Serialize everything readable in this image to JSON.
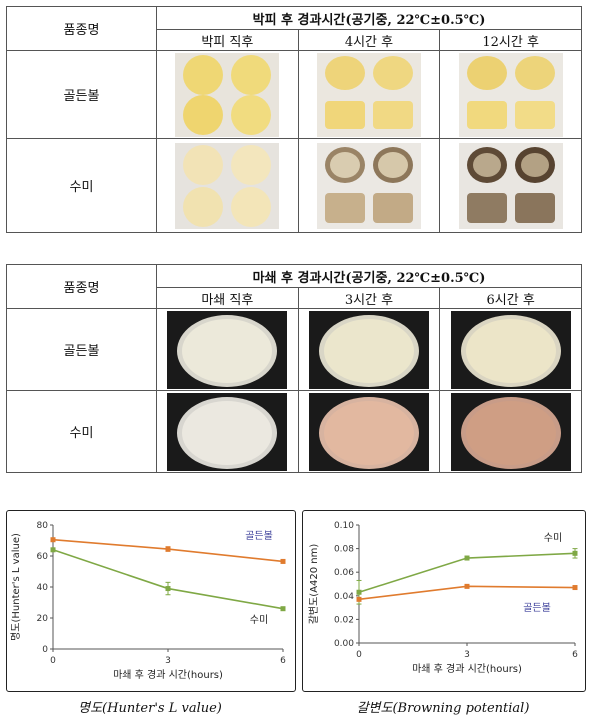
{
  "table1": {
    "variety_header": "품종명",
    "title": "박피 후 경과시간(공기중, 22℃±0.5℃)",
    "columns": [
      "박피 직후",
      "4시간 후",
      "12시간 후"
    ],
    "rows": [
      "골든볼",
      "수미"
    ]
  },
  "table2": {
    "variety_header": "품종명",
    "title": "마쇄 후 경과시간(공기중, 22℃±0.5℃)",
    "columns": [
      "마쇄 직후",
      "3시간 후",
      "6시간 후"
    ],
    "rows": [
      "골든볼",
      "수미"
    ]
  },
  "colors": {
    "golden_ball": "#e07b2e",
    "sumi": "#7fa845",
    "golden_ball_label": "#3b3f9a",
    "sumi_label": "#222222"
  },
  "chart_data": [
    {
      "type": "line",
      "title": "",
      "xlabel": "마쇄 후 경과 시간(hours)",
      "ylabel": "명도(Hunter's L value)",
      "x": [
        0,
        3,
        6
      ],
      "xticks": [
        "0",
        "3",
        "6"
      ],
      "ylim": [
        0,
        80
      ],
      "yticks": [
        "0",
        "20",
        "40",
        "60",
        "80"
      ],
      "series": [
        {
          "name": "골든볼",
          "values": [
            70.5,
            64.5,
            56.5
          ],
          "errors": [
            0.8,
            1.5,
            0.8
          ]
        },
        {
          "name": "수미",
          "values": [
            64,
            39,
            26
          ],
          "errors": [
            1.0,
            4.0,
            1.0
          ]
        }
      ],
      "grid": false,
      "caption": "명도(Hunter's L value)"
    },
    {
      "type": "line",
      "title": "",
      "xlabel": "마쇄 후 경과 시간(hours)",
      "ylabel": "갈변도(A420 nm)",
      "x": [
        0,
        3,
        6
      ],
      "xticks": [
        "0",
        "3",
        "6"
      ],
      "ylim": [
        0,
        0.1
      ],
      "yticks": [
        "0.00",
        "0.02",
        "0.04",
        "0.06",
        "0.08",
        "0.10"
      ],
      "series": [
        {
          "name": "수미",
          "values": [
            0.043,
            0.072,
            0.076
          ],
          "errors": [
            0.01,
            0.0015,
            0.004
          ]
        },
        {
          "name": "골든볼",
          "values": [
            0.037,
            0.048,
            0.047
          ],
          "errors": [
            0.001,
            0.001,
            0.001
          ]
        }
      ],
      "grid": false,
      "caption": "갈변도(Browning potential)"
    }
  ]
}
